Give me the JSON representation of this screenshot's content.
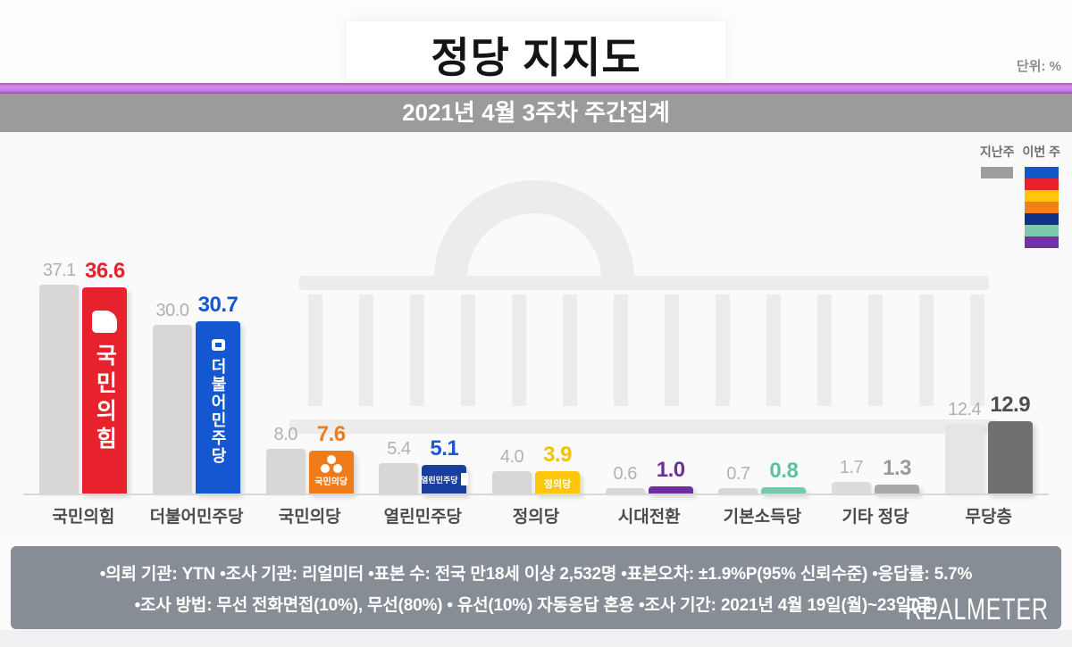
{
  "header": {
    "title": "정당 지지도",
    "unit_label": "단위: %",
    "subtitle": "2021년 4월 3주차 주간집계"
  },
  "legend": {
    "last_week": "지난주",
    "this_week": "이번 주",
    "last_week_color": "#9e9e9e",
    "stack_colors": [
      "#1457c9",
      "#e8222d",
      "#ffc60a",
      "#f08119",
      "#0f3189",
      "#7cc9ad",
      "#7231a8"
    ]
  },
  "chart_data": {
    "type": "bar",
    "title": "정당 지지도",
    "subtitle": "2021년 4월 3주차 주간집계",
    "unit": "%",
    "categories": [
      "국민의힘",
      "더불어민주당",
      "국민의당",
      "열린민주당",
      "정의당",
      "시대전환",
      "기본소득당",
      "기타 정당",
      "무당층"
    ],
    "series": [
      {
        "name": "지난주",
        "values": [
          37.1,
          30.0,
          8.0,
          5.4,
          4.0,
          0.6,
          0.7,
          1.7,
          12.4
        ]
      },
      {
        "name": "이번 주",
        "values": [
          36.6,
          30.7,
          7.6,
          5.1,
          3.9,
          1.0,
          0.8,
          1.3,
          12.9
        ]
      }
    ],
    "bar_colors": [
      "#e8222d",
      "#1557d0",
      "#ef7c1a",
      "#1b3e9e",
      "#fcc60a",
      "#6d2f9e",
      "#74c8ab",
      "#a9a9a9",
      "#707070"
    ],
    "value_colors": [
      "#e8222d",
      "#1557d0",
      "#ef7c1a",
      "#1c57d6",
      "#f6c105",
      "#6d2f9e",
      "#5cc2a2",
      "#9a9a9a",
      "#4e4e4e"
    ],
    "prev_bar_colors": [
      "#d9d7d5",
      "#d9d7d5",
      "#d9d7d5",
      "#d9d7d5",
      "#d9d7d5",
      "#d9d7d5",
      "#d9d7d5",
      "#dcdcdc",
      "#e5e5e5"
    ],
    "prev_value_color": "#b3b1af",
    "bar_inner_labels": [
      "국민의힘",
      "더불어민주당",
      "국민의당",
      "열린민주당",
      "정의당",
      "",
      "",
      "",
      ""
    ],
    "ylim": [
      0,
      40
    ],
    "grid": false,
    "legend_position": "top-right"
  },
  "footer": {
    "line1": "•의뢰 기관: YTN •조사 기관: 리얼미터 •표본 수: 전국 만18세 이상 2,532명 •표본오차: ±1.9%P(95% 신뢰수준) •응답률: 5.7%",
    "line2": "•조사 방법: 무선 전화면접(10%), 무선(80%) • 유선(10%) 자동응답 혼용 •조사 기간: 2021년 4월 19일(월)~23일(금)",
    "brand": "REALMETER"
  }
}
